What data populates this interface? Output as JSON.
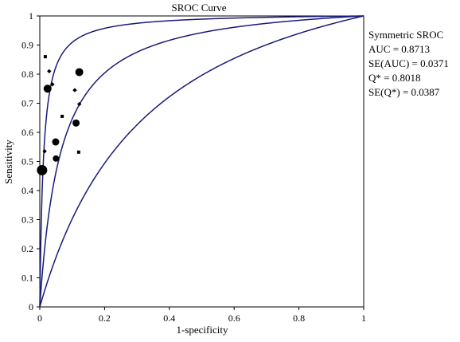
{
  "chart_data": {
    "type": "scatter",
    "title": "SROC Curve",
    "xlabel": "1-specificity",
    "ylabel": "Sensitivity",
    "xlim": [
      0,
      1
    ],
    "ylim": [
      0,
      1
    ],
    "x_ticks": [
      "0",
      "0.2",
      "0.4",
      "0.6",
      "0.8",
      "1"
    ],
    "y_ticks": [
      "0",
      "0.1",
      "0.2",
      "0.3",
      "0.4",
      "0.5",
      "0.6",
      "0.7",
      "0.8",
      "0.9",
      "1"
    ],
    "grid": false,
    "curve_color": "#1a1a7a",
    "point_color": "#000000",
    "curves": [
      {
        "name": "upper",
        "dor": 90
      },
      {
        "name": "center",
        "dor": 16.4
      },
      {
        "name": "lower",
        "dor": 3.9
      }
    ],
    "points": [
      {
        "x": 0.017,
        "y": 0.86,
        "shape": "square",
        "size": 3
      },
      {
        "x": 0.029,
        "y": 0.81,
        "shape": "diamond",
        "size": 3
      },
      {
        "x": 0.039,
        "y": 0.765,
        "shape": "diamond",
        "size": 3
      },
      {
        "x": 0.024,
        "y": 0.75,
        "shape": "circle",
        "size": 5
      },
      {
        "x": 0.122,
        "y": 0.807,
        "shape": "circle",
        "size": 5
      },
      {
        "x": 0.108,
        "y": 0.745,
        "shape": "diamond",
        "size": 3
      },
      {
        "x": 0.122,
        "y": 0.697,
        "shape": "diamond",
        "size": 3
      },
      {
        "x": 0.069,
        "y": 0.655,
        "shape": "square",
        "size": 3
      },
      {
        "x": 0.112,
        "y": 0.632,
        "shape": "circle",
        "size": 4.5
      },
      {
        "x": 0.049,
        "y": 0.567,
        "shape": "circle",
        "size": 4.5
      },
      {
        "x": 0.015,
        "y": 0.535,
        "shape": "diamond",
        "size": 3
      },
      {
        "x": 0.12,
        "y": 0.532,
        "shape": "square",
        "size": 3
      },
      {
        "x": 0.05,
        "y": 0.51,
        "shape": "circle",
        "size": 4
      },
      {
        "x": 0.007,
        "y": 0.47,
        "shape": "circle",
        "size": 6.5
      },
      {
        "x": 0.004,
        "y": 0.465,
        "shape": "circle",
        "size": 4
      }
    ],
    "annotations": {
      "label": "Symmetric SROC",
      "auc": "AUC = 0.8713",
      "se_auc": "SE(AUC) = 0.0371",
      "q_star": "Q* = 0.8018",
      "se_q_star": "SE(Q*) = 0.0387"
    }
  }
}
